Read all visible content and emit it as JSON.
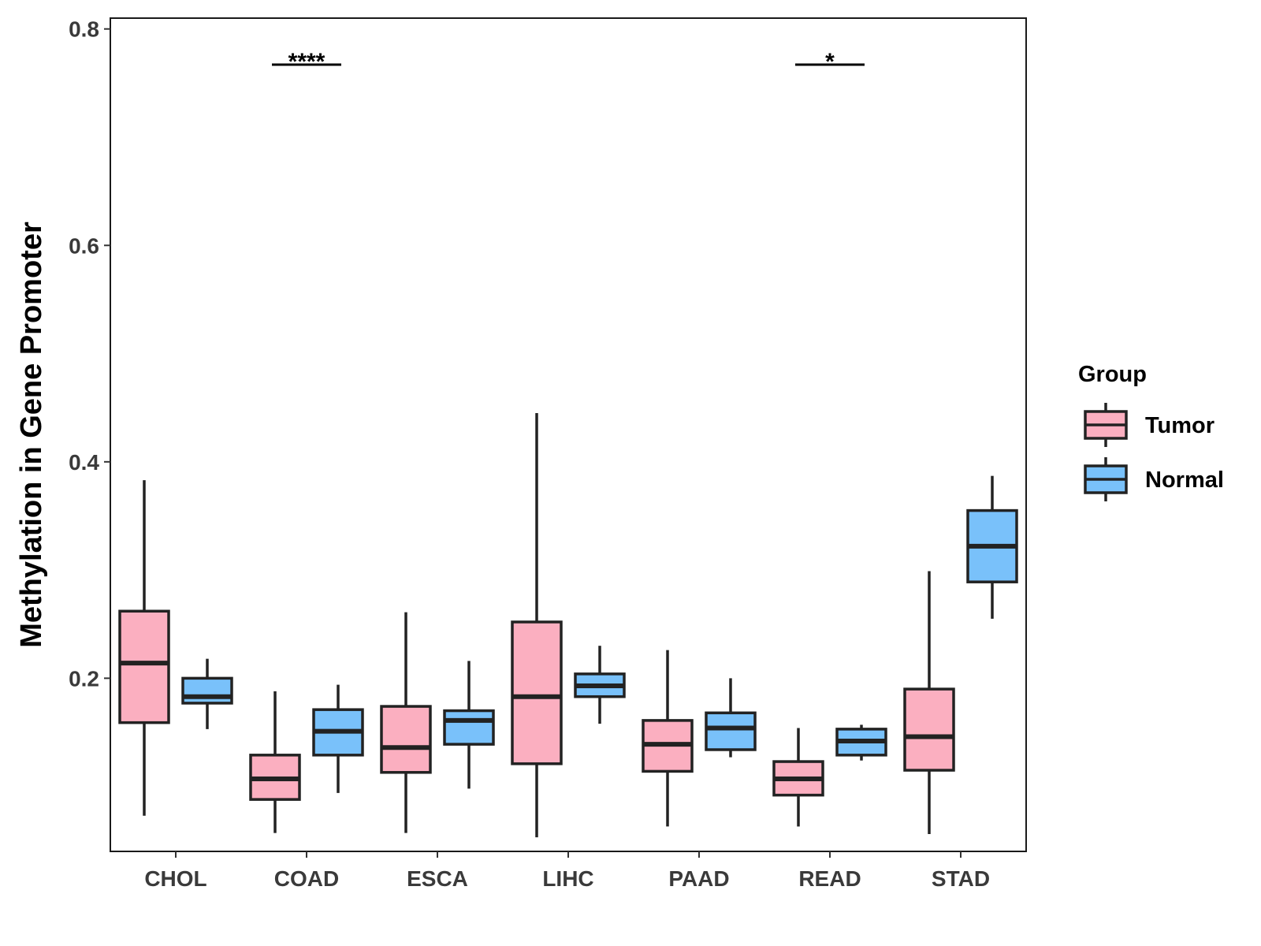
{
  "chart_data": {
    "type": "boxplot",
    "title": "",
    "xlabel": "",
    "ylabel": "Methylation in Gene Promoter",
    "ylim": [
      0.04,
      0.81
    ],
    "yticks": [
      "0.2",
      "0.4",
      "0.6",
      "0.8"
    ],
    "categories": [
      "CHOL",
      "COAD",
      "ESCA",
      "LIHC",
      "PAAD",
      "READ",
      "STAD"
    ],
    "legend": {
      "title": "Group",
      "position": "right"
    },
    "colors": {
      "Tumor": "#FBAFC0",
      "Normal": "#79C1FA",
      "outline": "#222222"
    },
    "series": [
      {
        "name": "Tumor",
        "boxes": [
          {
            "min": 0.073,
            "q1": 0.159,
            "median": 0.214,
            "q3": 0.262,
            "max": 0.383
          },
          {
            "min": 0.057,
            "q1": 0.088,
            "median": 0.107,
            "q3": 0.129,
            "max": 0.188
          },
          {
            "min": 0.057,
            "q1": 0.113,
            "median": 0.136,
            "q3": 0.174,
            "max": 0.261
          },
          {
            "min": 0.053,
            "q1": 0.121,
            "median": 0.183,
            "q3": 0.252,
            "max": 0.445
          },
          {
            "min": 0.063,
            "q1": 0.114,
            "median": 0.139,
            "q3": 0.161,
            "max": 0.226
          },
          {
            "min": 0.063,
            "q1": 0.092,
            "median": 0.107,
            "q3": 0.123,
            "max": 0.154
          },
          {
            "min": 0.056,
            "q1": 0.115,
            "median": 0.146,
            "q3": 0.19,
            "max": 0.299
          }
        ]
      },
      {
        "name": "Normal",
        "boxes": [
          {
            "min": 0.153,
            "q1": 0.177,
            "median": 0.183,
            "q3": 0.2,
            "max": 0.218
          },
          {
            "min": 0.094,
            "q1": 0.129,
            "median": 0.151,
            "q3": 0.171,
            "max": 0.194
          },
          {
            "min": 0.098,
            "q1": 0.139,
            "median": 0.161,
            "q3": 0.17,
            "max": 0.216
          },
          {
            "min": 0.158,
            "q1": 0.183,
            "median": 0.193,
            "q3": 0.204,
            "max": 0.23
          },
          {
            "min": 0.127,
            "q1": 0.134,
            "median": 0.154,
            "q3": 0.168,
            "max": 0.2
          },
          {
            "min": 0.124,
            "q1": 0.129,
            "median": 0.142,
            "q3": 0.153,
            "max": 0.157
          },
          {
            "min": 0.255,
            "q1": 0.289,
            "median": 0.322,
            "q3": 0.355,
            "max": 0.387
          }
        ]
      }
    ],
    "annotations": [
      {
        "category": "COAD",
        "label": "****",
        "y": 0.767
      },
      {
        "category": "READ",
        "label": "*",
        "y": 0.767
      }
    ]
  }
}
